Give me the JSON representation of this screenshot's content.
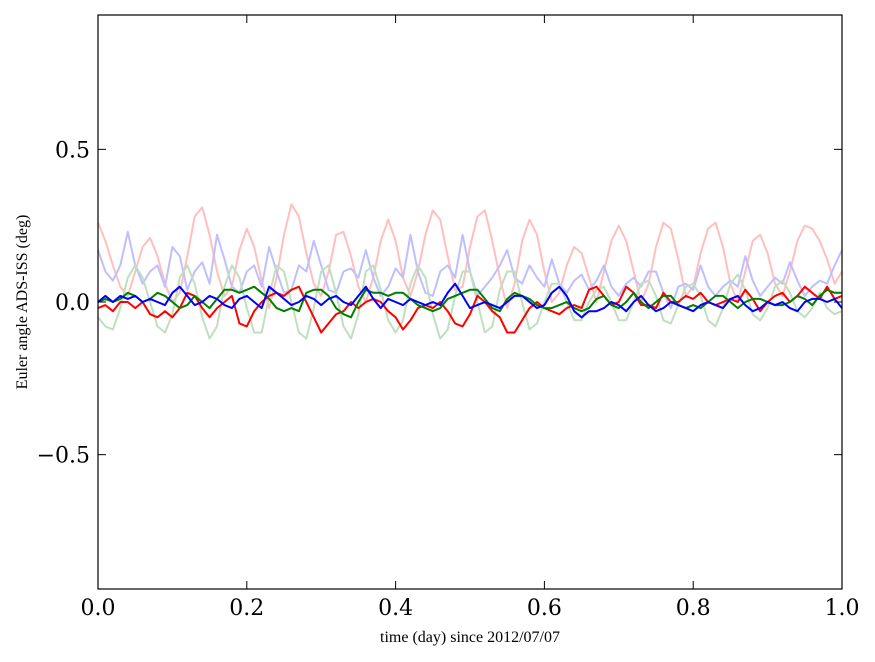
{
  "chart_data": {
    "type": "line",
    "title": "",
    "xlabel": "time (day) since 2012/07/07",
    "ylabel": "Euler angle ADS-ISS (deg)",
    "xlim": [
      0.0,
      1.0
    ],
    "ylim": [
      -0.94,
      0.94
    ],
    "grid": false,
    "x_ticks": [
      "0.0",
      "0.2",
      "0.4",
      "0.6",
      "0.8",
      "1.0"
    ],
    "x_tick_values": [
      0.0,
      0.2,
      0.4,
      0.6,
      0.8,
      1.0
    ],
    "y_ticks": [
      "−0.5",
      "0.0",
      "0.5"
    ],
    "y_tick_values": [
      -0.5,
      0.0,
      0.5
    ],
    "x": [
      0.0,
      0.01,
      0.02,
      0.03,
      0.04,
      0.05,
      0.06,
      0.07,
      0.08,
      0.09,
      0.1,
      0.11,
      0.12,
      0.13,
      0.14,
      0.15,
      0.16,
      0.17,
      0.18,
      0.19,
      0.2,
      0.21,
      0.22,
      0.23,
      0.24,
      0.25,
      0.26,
      0.27,
      0.28,
      0.29,
      0.3,
      0.31,
      0.32,
      0.33,
      0.34,
      0.35,
      0.36,
      0.37,
      0.38,
      0.39,
      0.4,
      0.41,
      0.42,
      0.43,
      0.44,
      0.45,
      0.46,
      0.47,
      0.48,
      0.49,
      0.5,
      0.51,
      0.52,
      0.53,
      0.54,
      0.55,
      0.56,
      0.57,
      0.58,
      0.59,
      0.6,
      0.61,
      0.62,
      0.63,
      0.64,
      0.65,
      0.66,
      0.67,
      0.68,
      0.69,
      0.7,
      0.71,
      0.72,
      0.73,
      0.74,
      0.75,
      0.76,
      0.77,
      0.78,
      0.79,
      0.8,
      0.81,
      0.82,
      0.83,
      0.84,
      0.85,
      0.86,
      0.87,
      0.88,
      0.89,
      0.9,
      0.91,
      0.92,
      0.93,
      0.94,
      0.95,
      0.96,
      0.97,
      0.98,
      0.99,
      1.0
    ],
    "series": [
      {
        "color": "#ffbfbf",
        "values": [
          0.26,
          0.2,
          0.12,
          0.05,
          0.02,
          0.1,
          0.18,
          0.21,
          0.15,
          0.06,
          0.0,
          0.03,
          0.15,
          0.28,
          0.31,
          0.22,
          0.1,
          0.02,
          0.05,
          0.17,
          0.24,
          0.18,
          0.07,
          -0.02,
          0.08,
          0.22,
          0.32,
          0.28,
          0.16,
          0.06,
          0.02,
          0.1,
          0.22,
          0.23,
          0.15,
          0.05,
          0.0,
          0.08,
          0.2,
          0.27,
          0.2,
          0.08,
          0.02,
          0.1,
          0.22,
          0.3,
          0.27,
          0.15,
          0.04,
          0.05,
          0.18,
          0.28,
          0.3,
          0.2,
          0.08,
          -0.02,
          0.06,
          0.2,
          0.27,
          0.22,
          0.1,
          0.0,
          0.03,
          0.12,
          0.18,
          0.16,
          0.08,
          0.0,
          0.1,
          0.2,
          0.25,
          0.2,
          0.1,
          0.0,
          0.06,
          0.18,
          0.26,
          0.24,
          0.14,
          0.02,
          0.05,
          0.16,
          0.24,
          0.26,
          0.18,
          0.06,
          0.0,
          0.1,
          0.2,
          0.22,
          0.16,
          0.06,
          0.02,
          0.1,
          0.2,
          0.25,
          0.24,
          0.2,
          0.14,
          0.06,
          0.1
        ]
      },
      {
        "color": "#bfbfff",
        "values": [
          0.17,
          0.1,
          0.07,
          0.12,
          0.23,
          0.12,
          0.06,
          0.1,
          0.12,
          0.05,
          0.18,
          0.15,
          0.04,
          0.1,
          0.13,
          0.06,
          0.22,
          0.14,
          0.05,
          0.03,
          0.1,
          0.12,
          0.05,
          0.18,
          0.1,
          0.03,
          0.04,
          0.12,
          0.1,
          0.2,
          0.12,
          0.04,
          0.03,
          0.1,
          0.11,
          0.08,
          0.17,
          0.08,
          0.02,
          0.05,
          0.11,
          0.08,
          0.22,
          0.1,
          0.03,
          0.02,
          0.1,
          0.12,
          0.08,
          0.22,
          0.1,
          0.02,
          0.05,
          0.08,
          0.12,
          0.17,
          0.08,
          0.06,
          0.12,
          0.08,
          0.05,
          0.14,
          0.06,
          0.03,
          0.07,
          0.09,
          0.04,
          0.07,
          0.12,
          0.05,
          0.02,
          0.06,
          0.08,
          0.05,
          0.1,
          0.1,
          0.03,
          -0.02,
          0.05,
          0.06,
          0.04,
          0.12,
          0.05,
          0.02,
          0.05,
          0.07,
          0.05,
          0.15,
          0.07,
          0.02,
          0.05,
          0.08,
          0.06,
          0.13,
          0.07,
          0.02,
          0.05,
          0.07,
          0.06,
          0.12,
          0.17
        ]
      },
      {
        "color": "#bfdfbf",
        "values": [
          -0.05,
          -0.08,
          -0.09,
          -0.02,
          0.08,
          0.12,
          0.08,
          0.0,
          -0.08,
          -0.1,
          -0.04,
          0.08,
          0.12,
          0.06,
          -0.05,
          -0.12,
          -0.08,
          0.05,
          0.12,
          0.08,
          -0.02,
          -0.1,
          -0.1,
          0.02,
          0.12,
          0.1,
          0.0,
          -0.1,
          -0.12,
          -0.02,
          0.1,
          0.12,
          0.03,
          -0.08,
          -0.12,
          -0.04,
          0.1,
          0.12,
          0.04,
          -0.06,
          -0.1,
          -0.06,
          0.06,
          0.12,
          0.08,
          -0.04,
          -0.12,
          -0.09,
          0.02,
          0.1,
          0.1,
          0.0,
          -0.1,
          -0.08,
          0.04,
          0.1,
          0.1,
          0.0,
          -0.09,
          -0.07,
          0.0,
          0.06,
          0.06,
          0.0,
          -0.06,
          -0.06,
          0.0,
          0.04,
          0.05,
          0.0,
          -0.06,
          -0.06,
          0.0,
          0.06,
          0.07,
          0.02,
          -0.06,
          -0.07,
          -0.01,
          0.05,
          0.06,
          0.02,
          -0.06,
          -0.08,
          -0.02,
          0.06,
          0.09,
          0.04,
          -0.04,
          -0.06,
          -0.02,
          0.05,
          0.07,
          0.03,
          -0.03,
          -0.05,
          -0.02,
          0.03,
          -0.02,
          -0.04,
          -0.03
        ]
      },
      {
        "color": "#ff0000",
        "values": [
          -0.02,
          -0.01,
          -0.03,
          0.0,
          0.0,
          -0.02,
          0.0,
          -0.04,
          -0.05,
          -0.03,
          -0.05,
          -0.02,
          0.03,
          0.02,
          -0.02,
          -0.05,
          -0.02,
          0.0,
          0.02,
          -0.07,
          -0.08,
          -0.03,
          0.0,
          0.02,
          0.03,
          0.02,
          0.04,
          0.05,
          0.0,
          -0.05,
          -0.1,
          -0.07,
          -0.04,
          -0.03,
          0.0,
          -0.02,
          0.0,
          0.01,
          0.0,
          -0.03,
          -0.05,
          -0.09,
          -0.06,
          -0.02,
          -0.01,
          -0.02,
          0.0,
          -0.03,
          -0.07,
          -0.08,
          -0.04,
          0.02,
          0.0,
          -0.03,
          -0.05,
          -0.1,
          -0.1,
          -0.06,
          -0.02,
          0.0,
          -0.02,
          -0.03,
          -0.04,
          -0.02,
          -0.01,
          -0.02,
          0.04,
          0.05,
          0.02,
          -0.01,
          0.0,
          0.05,
          0.03,
          -0.01,
          -0.01,
          -0.02,
          0.03,
          0.0,
          0.0,
          0.02,
          0.01,
          0.03,
          0.0,
          -0.01,
          0.0,
          0.01,
          0.0,
          0.04,
          0.01,
          -0.03,
          0.0,
          0.02,
          0.03,
          0.0,
          0.02,
          0.05,
          0.03,
          0.01,
          0.05,
          0.01,
          0.02
        ]
      },
      {
        "color": "#008000",
        "values": [
          0.0,
          0.01,
          0.0,
          0.01,
          0.03,
          0.02,
          0.0,
          0.01,
          0.03,
          0.02,
          0.0,
          -0.02,
          -0.01,
          0.02,
          0.0,
          -0.02,
          0.01,
          0.04,
          0.04,
          0.03,
          0.04,
          0.05,
          0.03,
          0.01,
          -0.02,
          -0.03,
          -0.02,
          -0.03,
          0.03,
          0.04,
          0.04,
          0.02,
          -0.02,
          -0.04,
          -0.05,
          0.0,
          0.04,
          0.03,
          0.03,
          0.02,
          0.03,
          0.03,
          0.01,
          -0.01,
          -0.02,
          -0.03,
          -0.02,
          0.01,
          0.02,
          0.03,
          0.04,
          0.04,
          0.01,
          -0.02,
          -0.03,
          0.01,
          0.03,
          0.02,
          0.01,
          -0.01,
          -0.02,
          -0.02,
          -0.01,
          0.0,
          -0.02,
          -0.03,
          -0.02,
          0.01,
          0.02,
          -0.01,
          -0.02,
          0.0,
          0.03,
          0.0,
          -0.02,
          0.0,
          0.02,
          0.02,
          -0.01,
          -0.02,
          -0.01,
          -0.02,
          0.0,
          0.02,
          0.02,
          0.0,
          -0.02,
          0.0,
          0.01,
          0.01,
          0.0,
          -0.01,
          -0.01,
          0.0,
          0.02,
          0.01,
          -0.01,
          0.02,
          0.04,
          0.03,
          0.03
        ]
      },
      {
        "color": "#0000ff",
        "values": [
          0.0,
          0.02,
          0.0,
          0.02,
          0.01,
          0.02,
          0.0,
          0.01,
          0.0,
          -0.01,
          0.03,
          0.05,
          0.02,
          -0.01,
          0.0,
          0.02,
          0.01,
          -0.01,
          -0.02,
          0.01,
          0.02,
          0.0,
          -0.02,
          0.05,
          0.03,
          0.01,
          -0.01,
          0.0,
          0.02,
          0.01,
          -0.01,
          0.01,
          0.02,
          0.0,
          -0.01,
          0.02,
          0.05,
          0.01,
          -0.02,
          0.01,
          0.0,
          -0.01,
          0.01,
          0.0,
          -0.01,
          0.0,
          -0.01,
          0.03,
          0.06,
          0.02,
          -0.02,
          -0.01,
          0.0,
          -0.01,
          -0.02,
          0.0,
          0.02,
          0.02,
          0.0,
          -0.02,
          -0.01,
          0.03,
          0.05,
          0.02,
          -0.03,
          -0.05,
          -0.03,
          -0.03,
          -0.02,
          0.0,
          -0.01,
          -0.03,
          0.0,
          0.02,
          -0.01,
          -0.03,
          -0.02,
          0.0,
          -0.01,
          -0.02,
          -0.03,
          -0.01,
          0.0,
          -0.01,
          -0.02,
          0.01,
          0.02,
          -0.01,
          -0.03,
          -0.02,
          0.0,
          -0.01,
          0.0,
          -0.02,
          -0.03,
          0.0,
          0.01,
          0.01,
          0.0,
          0.01,
          -0.02
        ]
      }
    ]
  }
}
